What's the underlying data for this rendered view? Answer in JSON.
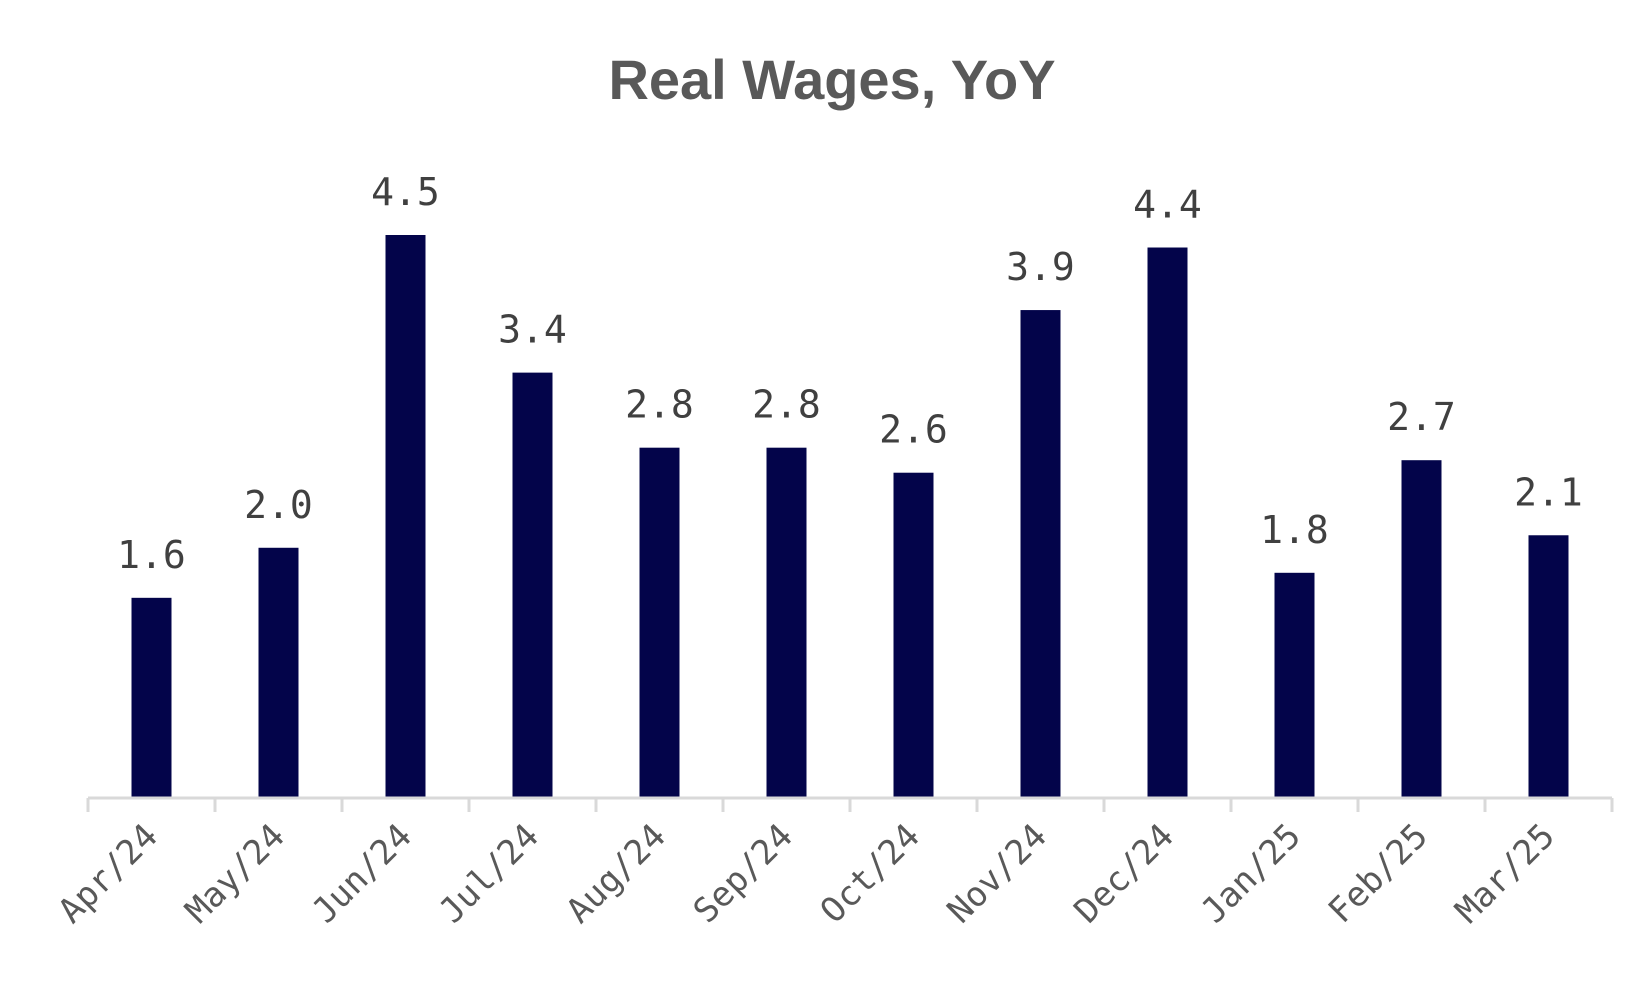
{
  "chart_data": {
    "type": "bar",
    "title": "Real Wages, YoY",
    "xlabel": "",
    "ylabel": "",
    "categories": [
      "Apr/24",
      "May/24",
      "Jun/24",
      "Jul/24",
      "Aug/24",
      "Sep/24",
      "Oct/24",
      "Nov/24",
      "Dec/24",
      "Jan/25",
      "Feb/25",
      "Mar/25"
    ],
    "values": [
      1.6,
      2.0,
      4.5,
      3.4,
      2.8,
      2.8,
      2.6,
      3.9,
      4.4,
      1.8,
      2.7,
      2.1
    ],
    "value_labels": [
      "1.6",
      "2.0",
      "4.5",
      "3.4",
      "2.8",
      "2.8",
      "2.6",
      "3.9",
      "4.4",
      "1.8",
      "2.7",
      "2.1"
    ],
    "ylim": [
      0,
      4.5
    ],
    "grid": false,
    "legend": "none",
    "bar_color": "#03044A",
    "axis_color": "#D9D9D9"
  }
}
